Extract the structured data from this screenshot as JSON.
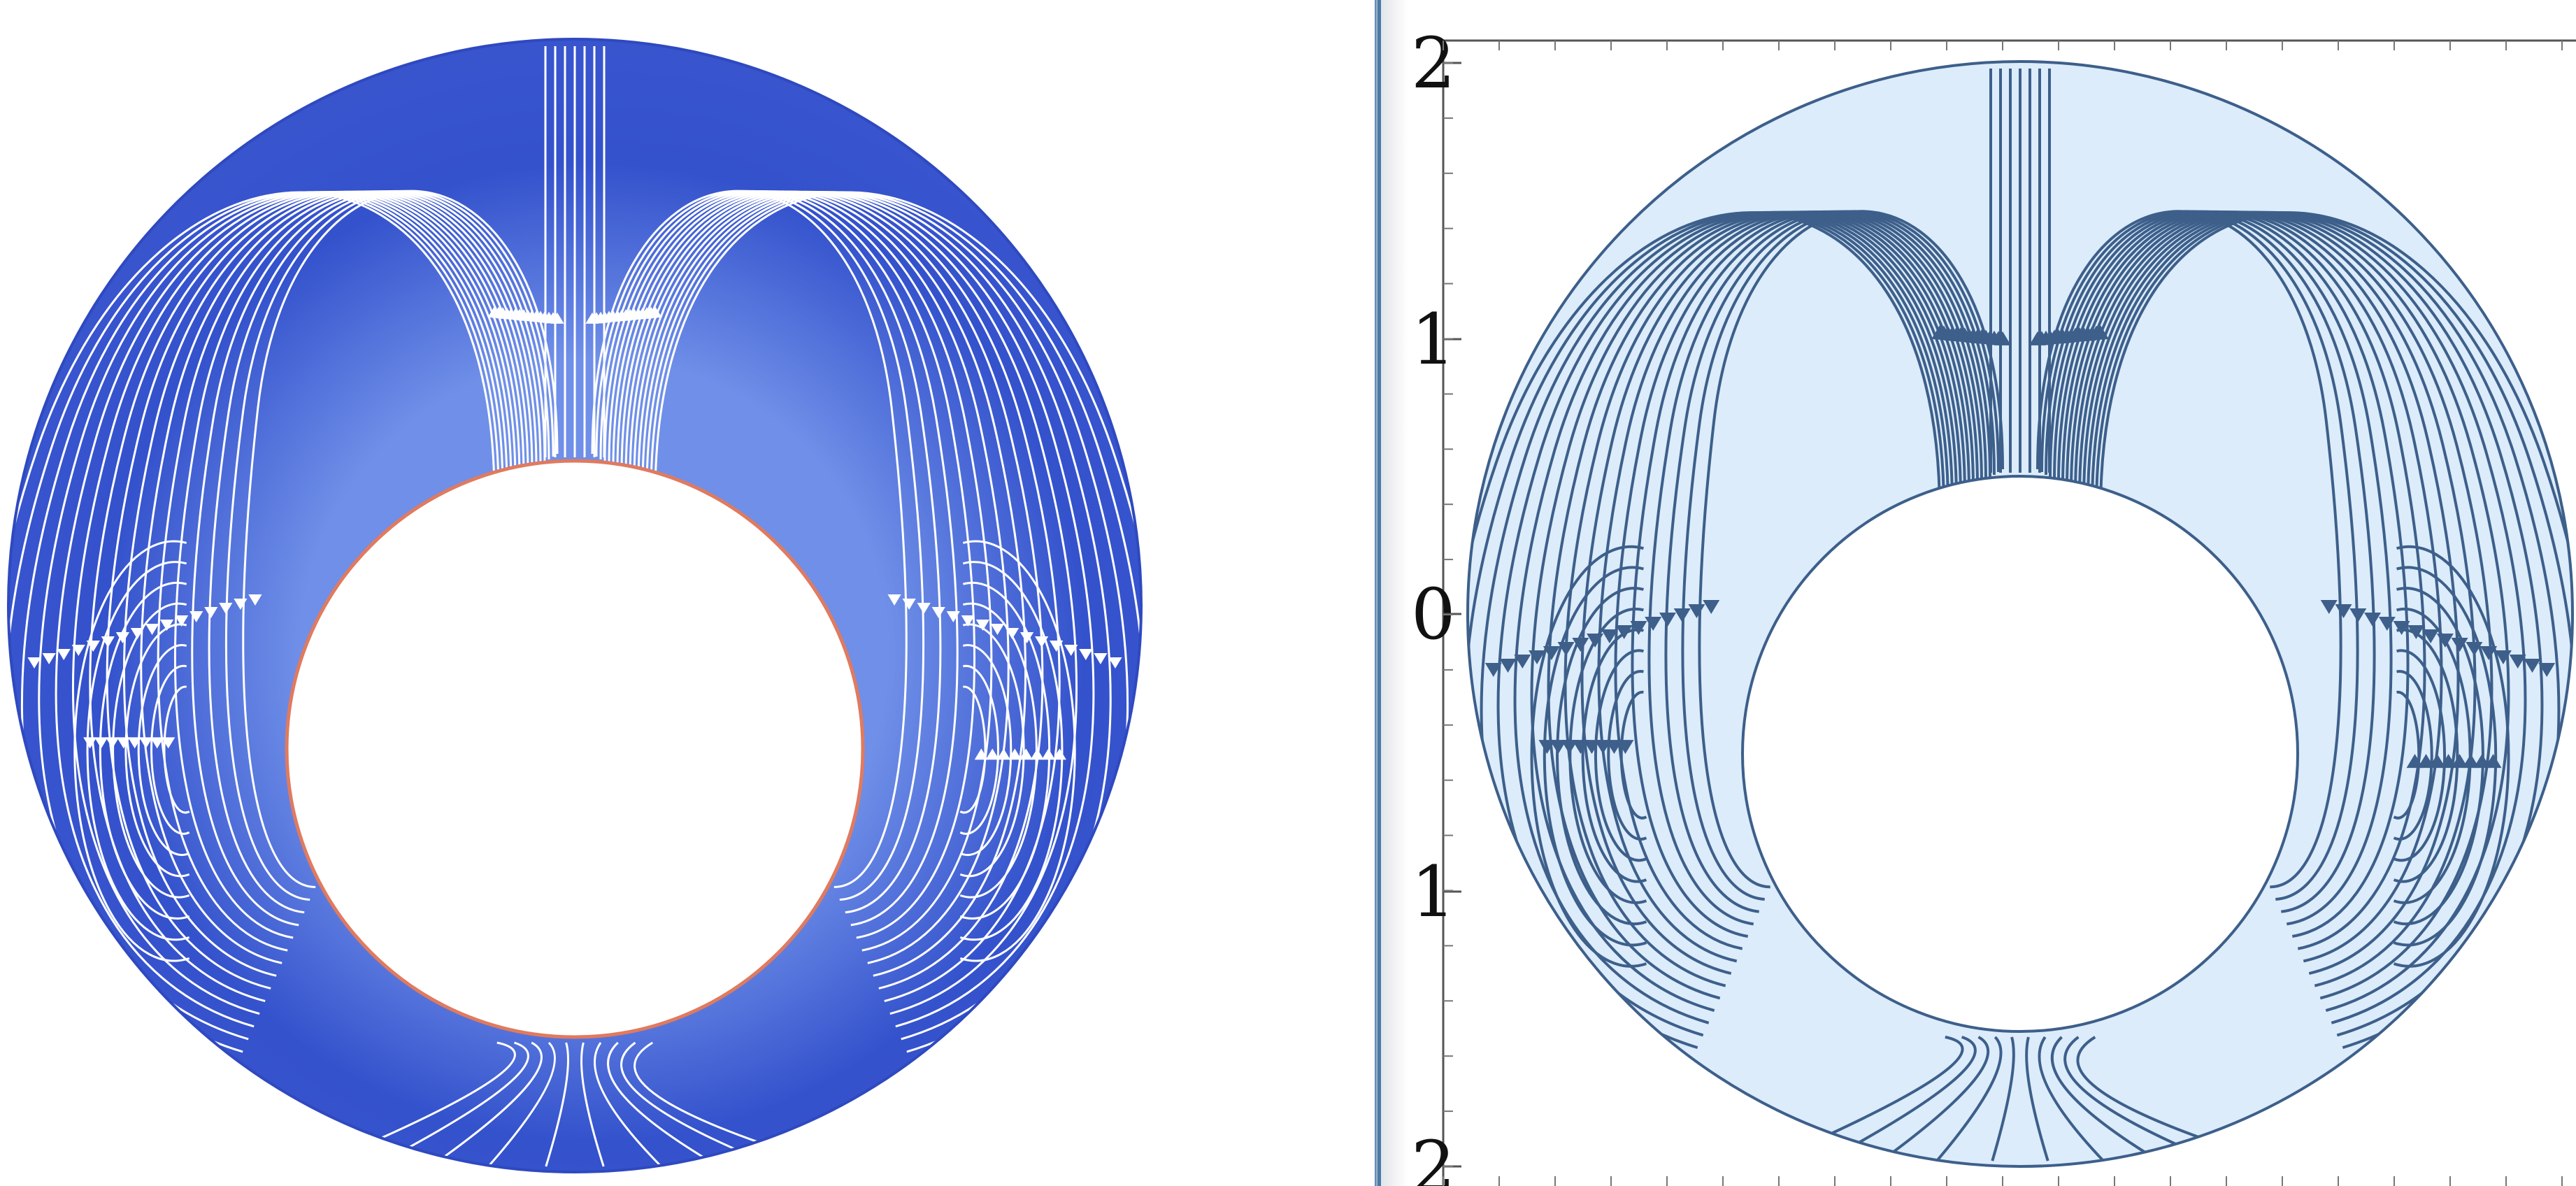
{
  "left_panel": {
    "fill_color": "#3452cc",
    "wall_color": "#e07a5f",
    "streamline_color": "#ffffff"
  },
  "right_panel": {
    "fill_color": "#dcecfb",
    "stroke_color": "#3d5f8a",
    "axis": {
      "y_ticks": [
        {
          "label": "2"
        },
        {
          "label": "1"
        },
        {
          "label": "0"
        },
        {
          "label": "1"
        },
        {
          "label": "2"
        }
      ]
    }
  },
  "divider_color": "#4a7aa8"
}
